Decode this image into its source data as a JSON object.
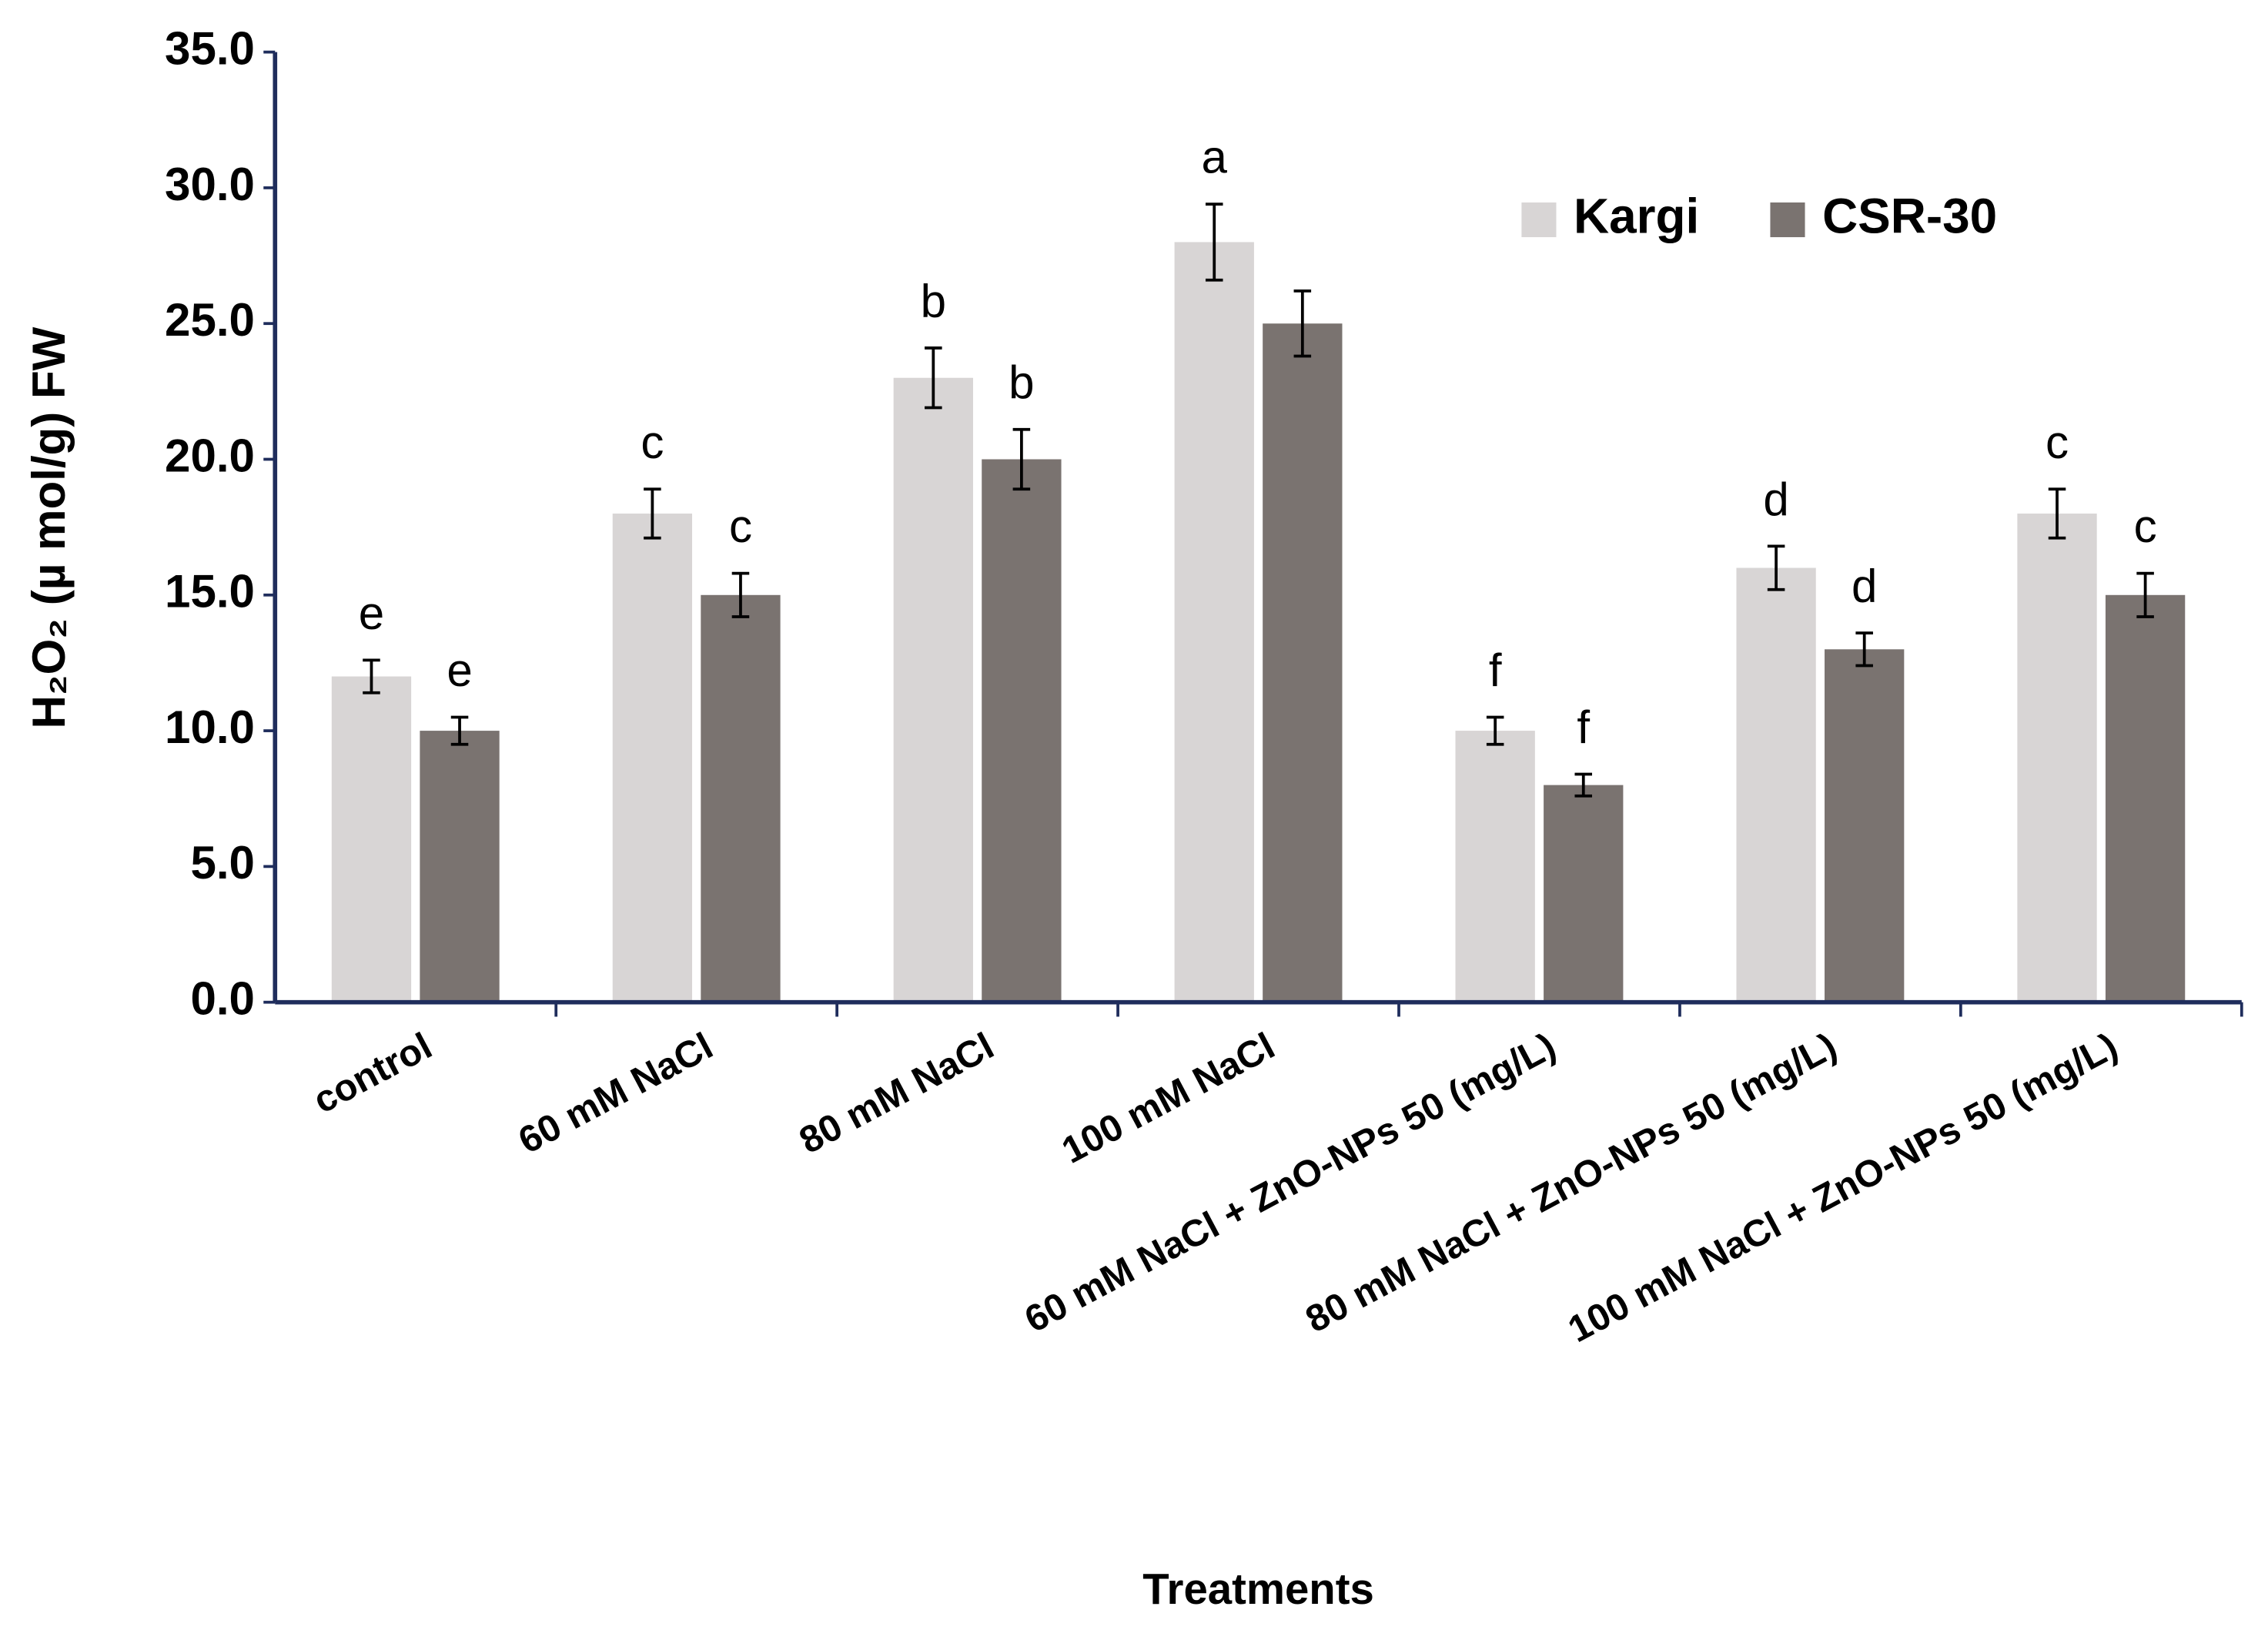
{
  "chart_data": {
    "type": "bar",
    "x_label": "Treatments",
    "y_label": "H₂O₂  (µ mol/g) FW",
    "categories": [
      "control",
      "60 mM NaCl",
      "80 mM NaCl",
      "100 mM NaCl",
      "60 mM NaCl + ZnO-NPs 50 (mg/L)",
      "80 mM NaCl + ZnO-NPs 50 (mg/L)",
      "100 mM NaCl + ZnO-NPs 50 (mg/L)"
    ],
    "series": [
      {
        "name": "Kargi",
        "color": "#d8d5d5",
        "values": [
          12,
          18,
          23,
          28,
          10,
          16,
          18
        ],
        "errors": [
          0.6,
          0.9,
          1.1,
          1.4,
          0.5,
          0.8,
          0.9
        ],
        "letters": [
          "e",
          "c",
          "b",
          "a",
          "f",
          "d",
          "c"
        ]
      },
      {
        "name": "CSR-30",
        "color": "#7a7370",
        "values": [
          10,
          15,
          20,
          25,
          8,
          13,
          15
        ],
        "errors": [
          0.5,
          0.8,
          1.1,
          1.2,
          0.4,
          0.6,
          0.8
        ],
        "letters": [
          "e",
          "c",
          "b",
          null,
          "f",
          "d",
          "c"
        ]
      }
    ],
    "ylim": [
      0,
      35
    ],
    "yticks": [
      {
        "value": 0,
        "label": "0.0"
      },
      {
        "value": 5,
        "label": "5.0"
      },
      {
        "value": 10,
        "label": "10.0"
      },
      {
        "value": 15,
        "label": "15.0"
      },
      {
        "value": 20,
        "label": "20.0"
      },
      {
        "value": 25,
        "label": "25.0"
      },
      {
        "value": 30,
        "label": "30.0"
      },
      {
        "value": 35,
        "label": "35.0"
      }
    ],
    "legend": "top-right"
  }
}
